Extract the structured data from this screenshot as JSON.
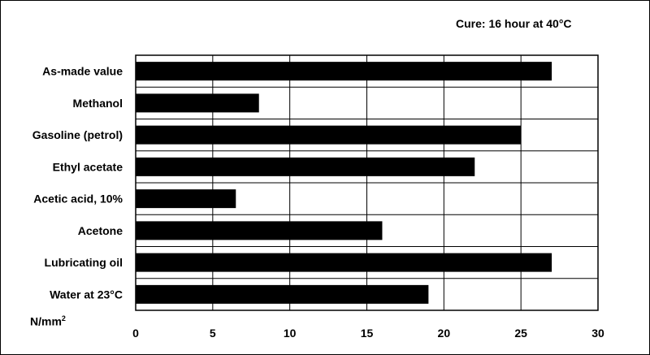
{
  "chart_data": {
    "type": "bar",
    "orientation": "horizontal",
    "annotation": "Cure: 16 hour at 40°C",
    "unit_label": {
      "base": "N/mm",
      "superscript": "2"
    },
    "categories": [
      "As-made value",
      "Methanol",
      "Gasoline (petrol)",
      "Ethyl acetate",
      "Acetic acid, 10%",
      "Acetone",
      "Lubricating oil",
      "Water at 23°C"
    ],
    "values": [
      27,
      8,
      25,
      22,
      6.5,
      16,
      27,
      19
    ],
    "xlim": [
      0,
      30
    ],
    "xticks": [
      0,
      5,
      10,
      15,
      20,
      25,
      30
    ],
    "grid": true,
    "bar_color": "#000000"
  }
}
